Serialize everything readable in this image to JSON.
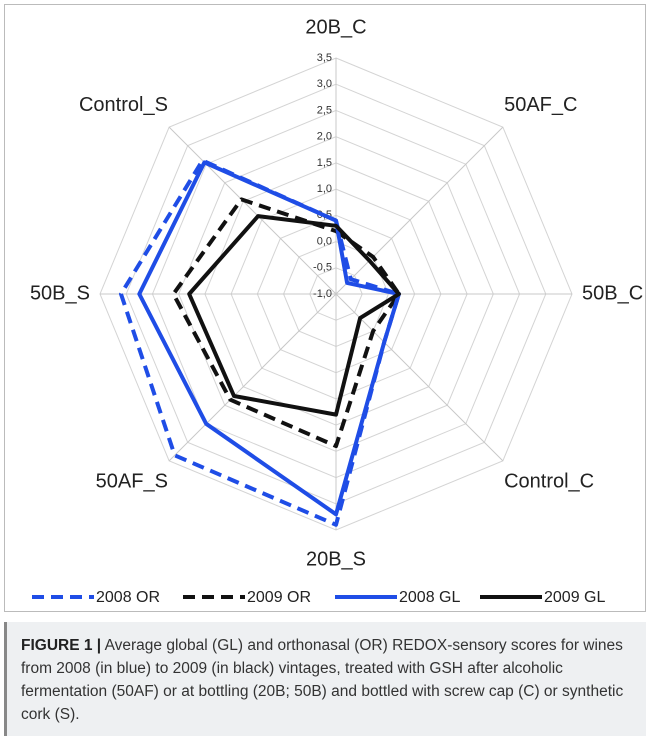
{
  "chart_data": {
    "type": "radar",
    "categories": [
      "20B_C",
      "50AF_C",
      "50B_C",
      "Control_C",
      "20B_S",
      "50AF_S",
      "50B_S",
      "Control_S"
    ],
    "ylim": [
      -1.0,
      3.5
    ],
    "yticks": [
      {
        "value": -1.0,
        "label": "-1,0"
      },
      {
        "value": -0.5,
        "label": "-0,5"
      },
      {
        "value": 0.0,
        "label": "0,0"
      },
      {
        "value": 0.5,
        "label": "0,5"
      },
      {
        "value": 1.0,
        "label": "1,0"
      },
      {
        "value": 1.5,
        "label": "1,5"
      },
      {
        "value": 2.0,
        "label": "2,0"
      },
      {
        "value": 2.5,
        "label": "2,5"
      },
      {
        "value": 3.0,
        "label": "3,0"
      },
      {
        "value": 3.5,
        "label": "3,5"
      }
    ],
    "grid": true,
    "series": [
      {
        "name": "2008 OR",
        "color": "#1f4de6",
        "dashed": true,
        "values": [
          0.4,
          -0.6,
          0.2,
          0.3,
          3.4,
          3.35,
          3.1,
          2.6
        ]
      },
      {
        "name": "2009 OR",
        "color": "#111111",
        "dashed": true,
        "values": [
          0.2,
          0.0,
          0.2,
          0.0,
          1.9,
          1.85,
          2.1,
          1.55
        ]
      },
      {
        "name": "2008 GL",
        "color": "#1f4de6",
        "dashed": false,
        "values": [
          0.4,
          -0.7,
          0.2,
          0.3,
          3.2,
          2.5,
          2.75,
          2.55
        ]
      },
      {
        "name": "2009 GL",
        "color": "#111111",
        "dashed": false,
        "values": [
          0.3,
          -0.1,
          0.2,
          -0.35,
          1.3,
          1.75,
          1.8,
          1.1
        ]
      }
    ]
  },
  "caption": {
    "label": "FIGURE 1 |",
    "text": "Average global (GL) and orthonasal (OR) REDOX-sensory scores for wines from 2008 (in blue) to 2009 (in black) vintages, treated with GSH after alcoholic fermentation (50AF) or at bottling (20B; 50B) and bottled with screw cap (C) or synthetic cork (S)."
  }
}
